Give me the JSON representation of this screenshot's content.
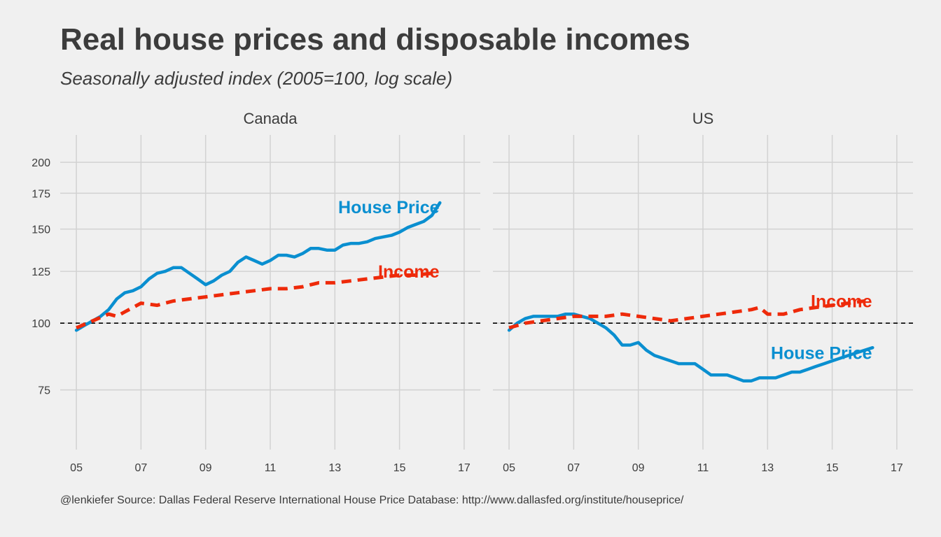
{
  "title": "Real house prices and disposable incomes",
  "subtitle": "Seasonally adjusted index (2005=100, log scale)",
  "caption": "@lenkiefer Source: Dallas Federal Reserve International House Price Database: http://www.dallasfed.org/institute/houseprice/",
  "colors": {
    "house_price": "#0a8fd0",
    "income": "#ee2a0a",
    "background": "#f0f0f0",
    "grid": "#d2d2d2",
    "reference": "#000000",
    "text": "#3c3c3c"
  },
  "chart_data": {
    "type": "line",
    "y_scale": "log",
    "ylim": [
      58,
      225
    ],
    "xlim": [
      2004.5,
      2017.5
    ],
    "x_ticks": [
      2005,
      2007,
      2009,
      2011,
      2013,
      2015,
      2017
    ],
    "x_tick_labels": [
      "05",
      "07",
      "09",
      "11",
      "13",
      "15",
      "17"
    ],
    "y_ticks": [
      75,
      100,
      125,
      150,
      175,
      200
    ],
    "y_tick_labels": [
      "75",
      "100",
      "125",
      "150",
      "175",
      "200"
    ],
    "reference_line": 100,
    "grid": true,
    "legend": "none",
    "panels": [
      {
        "name": "Canada",
        "series": [
          {
            "key": "house_price",
            "name": "House Price",
            "style": "solid",
            "x": [
              2005.0,
              2005.25,
              2005.5,
              2005.75,
              2006.0,
              2006.25,
              2006.5,
              2006.75,
              2007.0,
              2007.25,
              2007.5,
              2007.75,
              2008.0,
              2008.25,
              2008.5,
              2008.75,
              2009.0,
              2009.25,
              2009.5,
              2009.75,
              2010.0,
              2010.25,
              2010.5,
              2010.75,
              2011.0,
              2011.25,
              2011.5,
              2011.75,
              2012.0,
              2012.25,
              2012.5,
              2012.75,
              2013.0,
              2013.25,
              2013.5,
              2013.75,
              2014.0,
              2014.25,
              2014.5,
              2014.75,
              2015.0,
              2015.25,
              2015.5,
              2015.75,
              2016.0,
              2016.25
            ],
            "values": [
              97,
              99,
              101,
              103,
              106,
              111,
              114,
              115,
              117,
              121,
              124,
              125,
              127,
              127,
              124,
              121,
              118,
              120,
              123,
              125,
              130,
              133,
              131,
              129,
              131,
              134,
              134,
              133,
              135,
              138,
              138,
              137,
              137,
              140,
              141,
              141,
              142,
              144,
              145,
              146,
              148,
              151,
              153,
              155,
              159,
              168
            ]
          },
          {
            "key": "income",
            "name": "Income",
            "style": "dashed",
            "x": [
              2005.0,
              2005.5,
              2006.0,
              2006.25,
              2006.5,
              2007.0,
              2007.5,
              2008.0,
              2008.5,
              2009.0,
              2009.5,
              2010.0,
              2010.5,
              2011.0,
              2011.5,
              2012.0,
              2012.5,
              2013.0,
              2013.5,
              2014.0,
              2014.5,
              2015.0,
              2015.5,
              2016.0
            ],
            "values": [
              98,
              101,
              104,
              103,
              105,
              109,
              108,
              110,
              111,
              112,
              113,
              114,
              115,
              116,
              116,
              117,
              119,
              119,
              120,
              121,
              122,
              123,
              123,
              124
            ]
          }
        ],
        "annotations": [
          {
            "text": "House Price",
            "series": "house_price",
            "x": 2015.15,
            "y": 165
          },
          {
            "text": "Income",
            "series": "income",
            "x": 2015.15,
            "y": 125
          }
        ]
      },
      {
        "name": "US",
        "series": [
          {
            "key": "house_price",
            "name": "House Price",
            "style": "solid",
            "x": [
              2005.0,
              2005.25,
              2005.5,
              2005.75,
              2006.0,
              2006.25,
              2006.5,
              2006.75,
              2007.0,
              2007.25,
              2007.5,
              2007.75,
              2008.0,
              2008.25,
              2008.5,
              2008.75,
              2009.0,
              2009.25,
              2009.5,
              2009.75,
              2010.0,
              2010.25,
              2010.5,
              2010.75,
              2011.0,
              2011.25,
              2011.5,
              2011.75,
              2012.0,
              2012.25,
              2012.5,
              2012.75,
              2013.0,
              2013.25,
              2013.5,
              2013.75,
              2014.0,
              2014.25,
              2014.5,
              2014.75,
              2015.0,
              2015.25,
              2015.5,
              2015.75,
              2016.0,
              2016.25
            ],
            "values": [
              97,
              100,
              102,
              103,
              103,
              103,
              103,
              104,
              104,
              103,
              102,
              100,
              98,
              95,
              91,
              91,
              92,
              89,
              87,
              86,
              85,
              84,
              84,
              84,
              82,
              80,
              80,
              80,
              79,
              78,
              78,
              79,
              79,
              79,
              80,
              81,
              81,
              82,
              83,
              84,
              85,
              86,
              87,
              88,
              89,
              90
            ]
          },
          {
            "key": "income",
            "name": "Income",
            "style": "dashed",
            "x": [
              2005.0,
              2005.5,
              2006.0,
              2006.5,
              2007.0,
              2007.5,
              2008.0,
              2008.5,
              2009.0,
              2009.5,
              2010.0,
              2010.5,
              2011.0,
              2011.5,
              2012.0,
              2012.5,
              2012.75,
              2013.0,
              2013.5,
              2014.0,
              2014.5,
              2015.0,
              2015.5,
              2016.0
            ],
            "values": [
              98,
              100,
              101,
              102,
              103,
              103,
              103,
              104,
              103,
              102,
              101,
              102,
              103,
              104,
              105,
              106,
              107,
              104,
              104,
              106,
              107,
              108,
              109,
              110
            ]
          }
        ],
        "annotations": [
          {
            "text": "Income",
            "series": "income",
            "x": 2015.15,
            "y": 110
          },
          {
            "text": "House Price",
            "series": "house_price",
            "x": 2015.15,
            "y": 88
          }
        ]
      }
    ]
  }
}
